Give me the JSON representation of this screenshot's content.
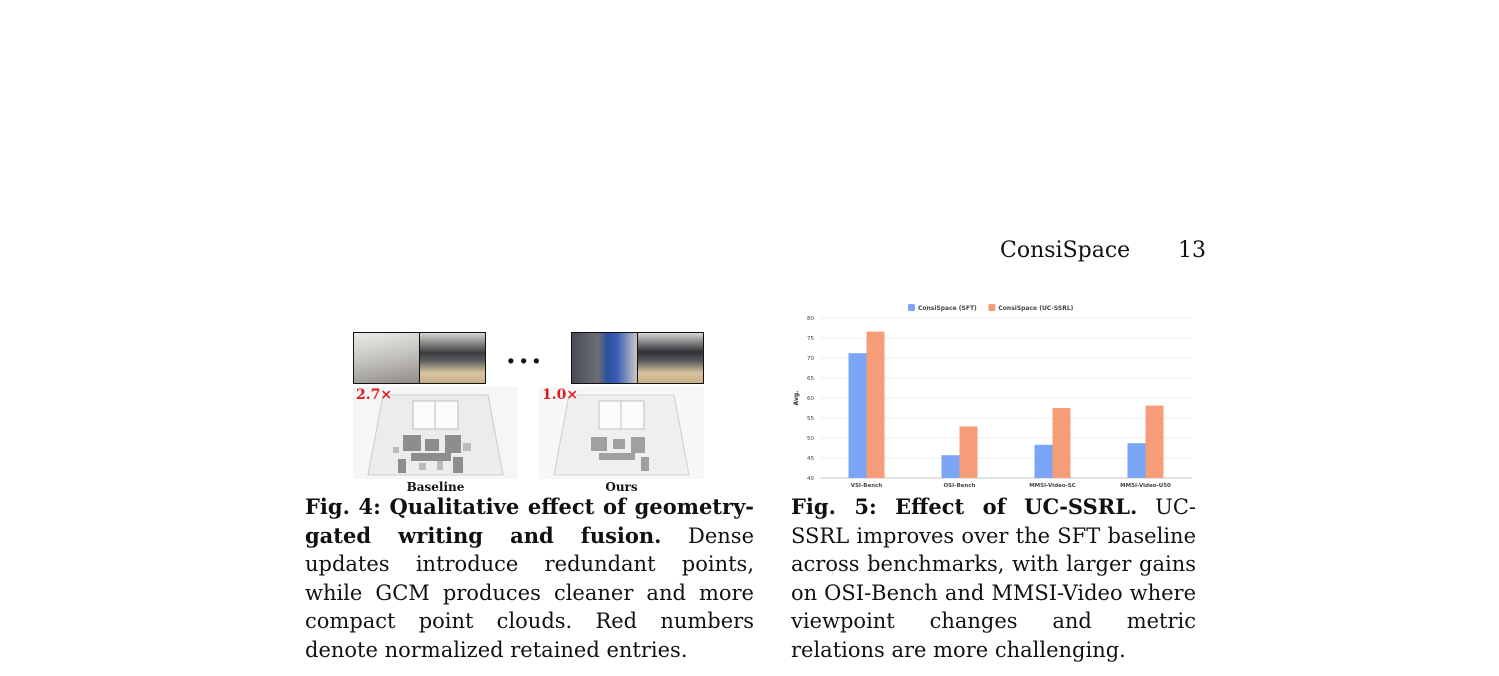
{
  "header": {
    "running_title": "ConsiSpace",
    "page_number": "13"
  },
  "fig4": {
    "ellipsis": "...",
    "baseline_ratio": "2.7×",
    "ours_ratio": "1.0×",
    "baseline_label": "Baseline",
    "ours_label": "Ours",
    "ratio_color": "#e3141b",
    "caption_prefix": "Fig. 4: Qualitative effect of geometry-gated writing and fusion.",
    "caption_body": " Dense updates introduce redundant points, while GCM produces cleaner and more compact point clouds. Red numbers denote normalized retained entries."
  },
  "fig5": {
    "caption_prefix": "Fig. 5: Effect of UC-SSRL.",
    "caption_body": " UC-SSRL improves over the SFT baseline across benchmarks, with larger gains on OSI-Bench and MMSI-Video where viewpoint changes and metric relations are more challenging."
  },
  "chart_data": {
    "type": "bar",
    "categories": [
      "VSI-Bench",
      "OSI-Bench",
      "MMSI-Video-SC",
      "MMSI-Video-U50"
    ],
    "series": [
      {
        "name": "ConsiSpace (SFT)",
        "values": [
          71.2,
          45.7,
          48.3,
          48.7
        ],
        "color": "#7aa6f5"
      },
      {
        "name": "ConsiSpace (UC-SSRL)",
        "values": [
          76.6,
          52.9,
          57.5,
          58.1
        ],
        "color": "#f79c78"
      }
    ],
    "ylabel": "Avg.",
    "ylim": [
      40,
      80
    ],
    "yticks": [
      40,
      45,
      50,
      55,
      60,
      65,
      70,
      75,
      80
    ],
    "grid": true,
    "legend": "top-center"
  }
}
